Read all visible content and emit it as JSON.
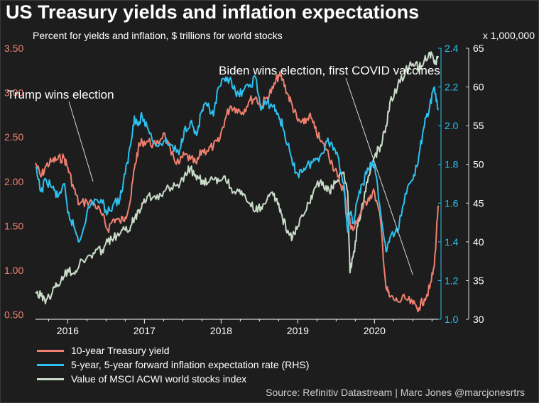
{
  "title": "US Treasury yields and inflation expectations",
  "subtitle": "Percent for yields and inflation, $ trillions for world stocks",
  "multiplier_label": "x 1,000,000",
  "source": "Source: Refinitiv Datastream | Marc Jones @marcjonesrtrs",
  "colors": {
    "treasury": "#f08070",
    "breakeven": "#2cc1f0",
    "msci": "#c9dcc9",
    "left_axis": "#f08070",
    "right_axis": "#2cc1f0",
    "msci_axis": "#d8d8d8",
    "annotation": "#ffffff"
  },
  "chart_data": {
    "type": "line",
    "title": "US Treasury yields and inflation expectations",
    "x_range": [
      2015.58,
      2020.83
    ],
    "x_ticks": [
      {
        "value": 2016.0,
        "label": "2016"
      },
      {
        "value": 2017.0,
        "label": "2017"
      },
      {
        "value": 2018.0,
        "label": "2018"
      },
      {
        "value": 2019.0,
        "label": "2019"
      },
      {
        "value": 2020.0,
        "label": "2020"
      }
    ],
    "axes": {
      "left": {
        "range": [
          0.45,
          3.5
        ],
        "ticks": [
          {
            "value": 3.5,
            "label": "3.50"
          },
          {
            "value": 3.0,
            "label": "3.00"
          },
          {
            "value": 2.5,
            "label": "2.50"
          },
          {
            "value": 2.0,
            "label": "2.00"
          },
          {
            "value": 1.5,
            "label": "1.50"
          },
          {
            "value": 1.0,
            "label": "1.00"
          },
          {
            "value": 0.5,
            "label": "0.50"
          }
        ]
      },
      "rhs_inflation": {
        "range": [
          1.0,
          2.4
        ],
        "ticks": [
          {
            "value": 2.4,
            "label": "2.4"
          },
          {
            "value": 2.2,
            "label": "2.2"
          },
          {
            "value": 2.0,
            "label": "2.0"
          },
          {
            "value": 1.8,
            "label": "1.8"
          },
          {
            "value": 1.6,
            "label": "1.6"
          },
          {
            "value": 1.4,
            "label": "1.4"
          },
          {
            "value": 1.2,
            "label": "1.2"
          },
          {
            "value": 1.0,
            "label": "1.0"
          }
        ]
      },
      "rhs_stocks": {
        "range": [
          30,
          65
        ],
        "ticks": [
          {
            "value": 65,
            "label": "65"
          },
          {
            "value": 60,
            "label": "60"
          },
          {
            "value": 55,
            "label": "55"
          },
          {
            "value": 50,
            "label": "50"
          },
          {
            "value": 45,
            "label": "45"
          },
          {
            "value": 40,
            "label": "40"
          },
          {
            "value": 35,
            "label": "35"
          },
          {
            "value": 30,
            "label": "30"
          }
        ]
      }
    },
    "series": [
      {
        "name": "10-year Treasury yield",
        "axis": "left",
        "color": "#f08070",
        "x": [
          2015.58,
          2015.65,
          2015.72,
          2015.8,
          2015.87,
          2015.95,
          2016.0,
          2016.08,
          2016.15,
          2016.25,
          2016.35,
          2016.45,
          2016.52,
          2016.6,
          2016.68,
          2016.75,
          2016.82,
          2016.87,
          2016.92,
          2016.97,
          2017.05,
          2017.15,
          2017.25,
          2017.35,
          2017.45,
          2017.52,
          2017.6,
          2017.68,
          2017.75,
          2017.82,
          2017.9,
          2017.97,
          2018.05,
          2018.12,
          2018.2,
          2018.28,
          2018.36,
          2018.45,
          2018.52,
          2018.6,
          2018.68,
          2018.75,
          2018.8,
          2018.87,
          2018.93,
          2019.0,
          2019.08,
          2019.15,
          2019.22,
          2019.3,
          2019.38,
          2019.45,
          2019.52,
          2019.6,
          2019.65,
          2019.68,
          2019.72,
          2019.78,
          2019.85,
          2019.92,
          2020.0,
          2020.08,
          2020.15,
          2020.2,
          2020.3,
          2020.4,
          2020.5,
          2020.58,
          2020.65,
          2020.72,
          2020.78,
          2020.83
        ],
        "values": [
          2.21,
          2.05,
          2.18,
          2.23,
          2.25,
          2.27,
          2.16,
          1.92,
          1.74,
          1.78,
          1.75,
          1.62,
          1.46,
          1.58,
          1.55,
          1.6,
          1.8,
          2.15,
          2.37,
          2.45,
          2.45,
          2.4,
          2.55,
          2.3,
          2.2,
          2.3,
          2.25,
          2.2,
          2.35,
          2.35,
          2.4,
          2.45,
          2.7,
          2.85,
          2.82,
          2.78,
          2.9,
          2.95,
          2.85,
          2.95,
          3.05,
          3.2,
          3.15,
          2.98,
          2.85,
          2.68,
          2.65,
          2.75,
          2.6,
          2.45,
          2.35,
          2.2,
          2.05,
          1.9,
          1.6,
          1.55,
          1.45,
          1.58,
          1.7,
          1.82,
          1.88,
          1.55,
          0.8,
          0.7,
          0.65,
          0.68,
          0.62,
          0.58,
          0.68,
          0.8,
          1.05,
          1.73
        ]
      },
      {
        "name": "5-year, 5-year forward inflation expectation rate (RHS)",
        "axis": "rhs_inflation",
        "color": "#2cc1f0",
        "x": [
          2015.58,
          2015.65,
          2015.72,
          2015.8,
          2015.87,
          2015.95,
          2016.0,
          2016.08,
          2016.15,
          2016.25,
          2016.35,
          2016.45,
          2016.52,
          2016.6,
          2016.68,
          2016.75,
          2016.82,
          2016.87,
          2016.92,
          2016.97,
          2017.05,
          2017.15,
          2017.25,
          2017.35,
          2017.45,
          2017.52,
          2017.6,
          2017.68,
          2017.75,
          2017.82,
          2017.9,
          2017.97,
          2018.05,
          2018.12,
          2018.2,
          2018.28,
          2018.36,
          2018.45,
          2018.52,
          2018.6,
          2018.68,
          2018.75,
          2018.8,
          2018.87,
          2018.93,
          2019.0,
          2019.08,
          2019.15,
          2019.22,
          2019.3,
          2019.38,
          2019.45,
          2019.52,
          2019.6,
          2019.65,
          2019.68,
          2019.72,
          2019.78,
          2019.85,
          2019.92,
          2020.0,
          2020.08,
          2020.15,
          2020.2,
          2020.3,
          2020.4,
          2020.5,
          2020.58,
          2020.65,
          2020.72,
          2020.78,
          2020.83
        ],
        "values": [
          1.78,
          1.66,
          1.72,
          1.68,
          1.63,
          1.7,
          1.55,
          1.48,
          1.4,
          1.55,
          1.62,
          1.6,
          1.55,
          1.6,
          1.62,
          1.75,
          1.9,
          2.05,
          2.0,
          2.05,
          1.98,
          1.9,
          1.92,
          1.9,
          1.85,
          1.98,
          2.02,
          1.95,
          2.08,
          2.1,
          2.05,
          2.2,
          2.23,
          2.25,
          2.15,
          2.18,
          2.2,
          2.25,
          2.08,
          2.12,
          2.1,
          2.05,
          2.0,
          1.9,
          1.8,
          1.75,
          1.78,
          1.8,
          1.82,
          1.85,
          1.92,
          1.9,
          1.85,
          1.7,
          1.45,
          1.55,
          1.5,
          1.62,
          1.7,
          1.78,
          1.8,
          1.55,
          1.35,
          1.42,
          1.45,
          1.65,
          1.72,
          1.85,
          2.0,
          2.1,
          2.2,
          2.08
        ]
      },
      {
        "name": "Value of MSCI ACWI world stocks index",
        "axis": "rhs_stocks",
        "color": "#c9dcc9",
        "x": [
          2015.58,
          2015.65,
          2015.72,
          2015.8,
          2015.87,
          2015.95,
          2016.0,
          2016.08,
          2016.15,
          2016.25,
          2016.35,
          2016.45,
          2016.52,
          2016.6,
          2016.68,
          2016.75,
          2016.82,
          2016.87,
          2016.92,
          2016.97,
          2017.05,
          2017.15,
          2017.25,
          2017.35,
          2017.45,
          2017.52,
          2017.6,
          2017.68,
          2017.75,
          2017.82,
          2017.9,
          2017.97,
          2018.05,
          2018.12,
          2018.2,
          2018.28,
          2018.36,
          2018.45,
          2018.52,
          2018.6,
          2018.68,
          2018.75,
          2018.8,
          2018.87,
          2018.93,
          2019.0,
          2019.08,
          2019.15,
          2019.22,
          2019.3,
          2019.38,
          2019.45,
          2019.52,
          2019.6,
          2019.65,
          2019.68,
          2019.72,
          2019.78,
          2019.85,
          2019.92,
          2020.0,
          2020.08,
          2020.15,
          2020.2,
          2020.3,
          2020.4,
          2020.5,
          2020.58,
          2020.65,
          2020.72,
          2020.78,
          2020.83
        ],
        "values": [
          33.5,
          33.0,
          32.5,
          33.5,
          34.5,
          35.5,
          36.5,
          36.0,
          37.0,
          38.0,
          38.5,
          39.0,
          40.0,
          40.5,
          41.0,
          41.5,
          42.0,
          43.0,
          44.0,
          45.0,
          46.0,
          45.5,
          46.5,
          47.0,
          47.0,
          48.5,
          49.5,
          48.0,
          48.0,
          47.5,
          48.0,
          47.8,
          48.5,
          47.0,
          46.5,
          46.0,
          45.0,
          44.0,
          44.5,
          45.5,
          46.0,
          45.0,
          43.0,
          41.5,
          40.5,
          42.0,
          43.5,
          45.0,
          47.0,
          48.0,
          46.5,
          47.0,
          48.0,
          49.0,
          46.5,
          36.0,
          38.0,
          42.0,
          45.0,
          48.5,
          51.0,
          52.5,
          55.0,
          58.0,
          60.0,
          62.0,
          63.0,
          62.5,
          63.5,
          64.5,
          63.0,
          64.0
        ]
      }
    ],
    "annotations": [
      {
        "label": "Trump wins election",
        "x": 2016.87,
        "series": "10-year Treasury yield"
      },
      {
        "label": "Biden wins election, first COVID vaccines",
        "x": 2020.83,
        "series": "10-year Treasury yield"
      }
    ],
    "legend": "bottom-left",
    "grid": false
  }
}
